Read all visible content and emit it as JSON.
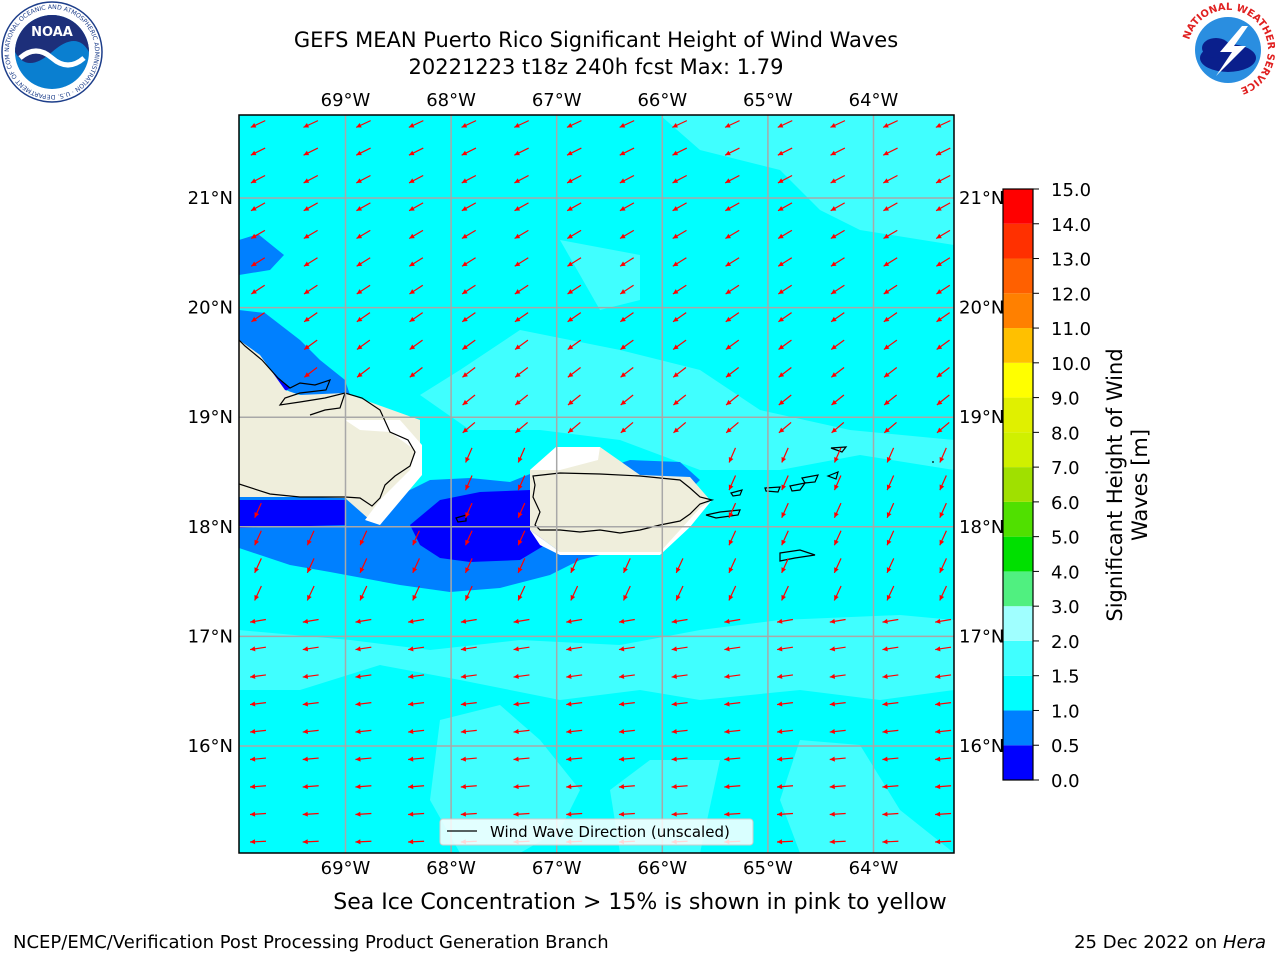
{
  "title": {
    "line1": "GEFS MEAN Puerto Rico Significant Height of Wind Waves",
    "line2": "20221223 t18z 240h fcst   Max: 1.79"
  },
  "map": {
    "lon_labels": [
      "69°W",
      "68°W",
      "67°W",
      "66°W",
      "65°W",
      "64°W"
    ],
    "lat_labels": [
      "21°N",
      "20°N",
      "19°N",
      "18°N",
      "17°N",
      "16°N"
    ],
    "legend_label": "Wind Wave Direction (unscaled)",
    "extent": {
      "lon_min": -70,
      "lon_max": -63.25,
      "lat_min": 15,
      "lat_max": 21.75
    },
    "colors": {
      "ocean": "#00FFFF",
      "light_band": "#40FFFF",
      "medium_blue": "#0080FF",
      "deep_blue": "#0000FF",
      "land": "#EFEEDC",
      "arrow": "#FF0000"
    }
  },
  "colorbar": {
    "label": "Significant Height of Wind Waves [m]",
    "label_line1": "Significant Height of Wind",
    "label_line2": "Waves [m]",
    "ticks": [
      "0.0",
      "0.5",
      "1.0",
      "1.5",
      "2.0",
      "3.0",
      "4.0",
      "5.0",
      "6.0",
      "7.0",
      "8.0",
      "9.0",
      "10.0",
      "11.0",
      "12.0",
      "13.0",
      "14.0",
      "15.0"
    ],
    "colors": [
      "#0000FF",
      "#0080FF",
      "#00FFFF",
      "#40FFFF",
      "#A0FFFF",
      "#50F080",
      "#00E000",
      "#50E000",
      "#A0E000",
      "#D0F000",
      "#E0F000",
      "#FFFF00",
      "#FFC000",
      "#FF8000",
      "#FF6000",
      "#FF3000",
      "#FF0000"
    ]
  },
  "sea_ice_note": "Sea Ice Concentration > 15% is shown in pink to yellow",
  "footer": {
    "left": "NCEP/EMC/Verification Post Processing Product Generation Branch",
    "right_prefix": "25 Dec 2022 on ",
    "right_italic": "Hera"
  },
  "logos": {
    "noaa": "NOAA",
    "noaa_ring": "NATIONAL OCEANIC AND ATMOSPHERIC ADMINISTRATION · U.S. DEPARTMENT OF COMMERCE",
    "nws_ring": "NATIONAL WEATHER SERVICE"
  }
}
